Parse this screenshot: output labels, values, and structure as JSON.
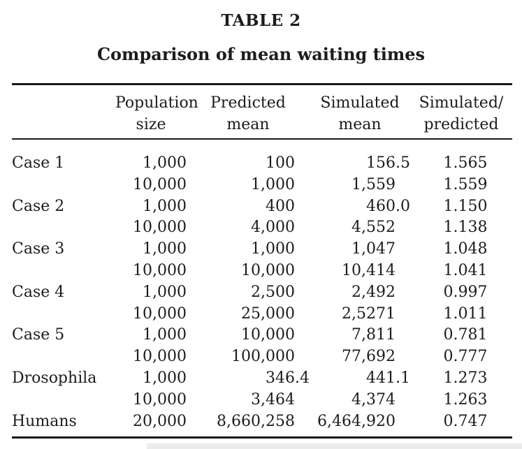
{
  "title": "TABLE 2",
  "subtitle": "Comparison of mean waiting times",
  "table": {
    "columns": [
      {
        "label_line1": "Population",
        "label_line2": "size"
      },
      {
        "label_line1": "Predicted",
        "label_line2": "mean"
      },
      {
        "label_line1": "Simulated",
        "label_line2": "mean"
      },
      {
        "label_line1": "Simulated/",
        "label_line2": "predicted"
      }
    ],
    "rows": [
      {
        "label": "Case 1",
        "population_size": "1,000",
        "predicted_mean": "100",
        "simulated_mean": "156.5",
        "ratio": "1.565"
      },
      {
        "label": "",
        "population_size": "10,000",
        "predicted_mean": "1,000",
        "simulated_mean": "1,559",
        "ratio": "1.559"
      },
      {
        "label": "Case 2",
        "population_size": "1,000",
        "predicted_mean": "400",
        "simulated_mean": "460.0",
        "ratio": "1.150"
      },
      {
        "label": "",
        "population_size": "10,000",
        "predicted_mean": "4,000",
        "simulated_mean": "4,552",
        "ratio": "1.138"
      },
      {
        "label": "Case 3",
        "population_size": "1,000",
        "predicted_mean": "1,000",
        "simulated_mean": "1,047",
        "ratio": "1.048"
      },
      {
        "label": "",
        "population_size": "10,000",
        "predicted_mean": "10,000",
        "simulated_mean": "10,414",
        "ratio": "1.041"
      },
      {
        "label": "Case 4",
        "population_size": "1,000",
        "predicted_mean": "2,500",
        "simulated_mean": "2,492",
        "ratio": "0.997"
      },
      {
        "label": "",
        "population_size": "10,000",
        "predicted_mean": "25,000",
        "simulated_mean": "2,5271",
        "ratio": "1.011"
      },
      {
        "label": "Case 5",
        "population_size": "1,000",
        "predicted_mean": "10,000",
        "simulated_mean": "7,811",
        "ratio": "0.781"
      },
      {
        "label": "",
        "population_size": "10,000",
        "predicted_mean": "100,000",
        "simulated_mean": "77,692",
        "ratio": "0.777"
      },
      {
        "label": "Drosophila",
        "population_size": "1,000",
        "predicted_mean": "346.4",
        "simulated_mean": "441.1",
        "ratio": "1.273"
      },
      {
        "label": "",
        "population_size": "10,000",
        "predicted_mean": "3,464",
        "simulated_mean": "4,374",
        "ratio": "1.263"
      },
      {
        "label": "Humans",
        "population_size": "20,000",
        "predicted_mean": "8,660,258",
        "simulated_mean": "6,464,920",
        "ratio": "0.747"
      }
    ]
  },
  "colors": {
    "text": "#1c1c1c",
    "rule": "#191919",
    "background": "#ffffff",
    "bottom_strip": "#ececec"
  }
}
